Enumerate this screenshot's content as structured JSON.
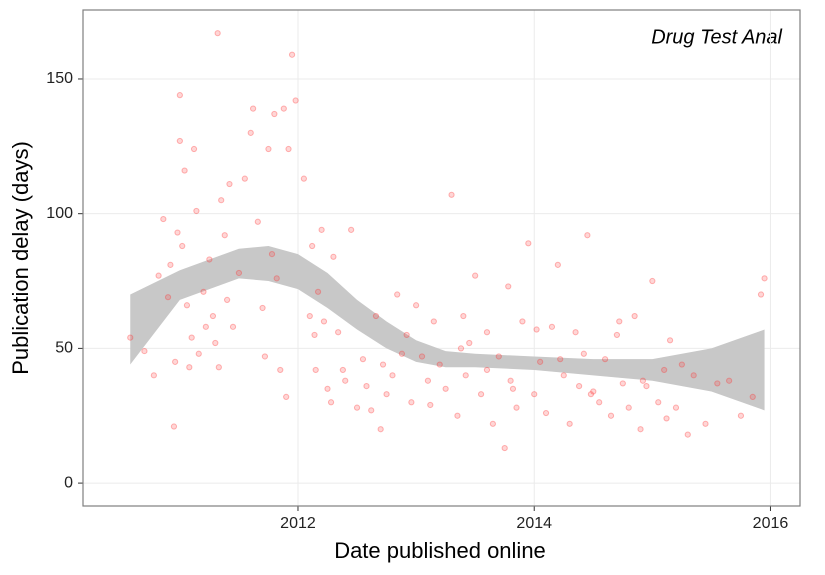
{
  "chart_data": {
    "type": "scatter",
    "annotation": "Drug Test Anal",
    "x_label": "Date published online",
    "y_label": "Publication delay (days)",
    "xlim": [
      2010.18,
      2016.25
    ],
    "ylim": [
      -8.5,
      175.6
    ],
    "xticks": [
      2012,
      2014,
      2016
    ],
    "yticks": [
      0,
      50,
      100,
      150
    ],
    "grid": true,
    "series": [
      {
        "color": "#ff3030",
        "x": [
          2010.58,
          2010.7,
          2010.78,
          2010.82,
          2010.86,
          2010.9,
          2010.92,
          2010.95,
          2010.96,
          2010.98,
          2011.0,
          2011.0,
          2011.02,
          2011.04,
          2011.06,
          2011.08,
          2011.1,
          2011.12,
          2011.14,
          2011.16,
          2011.2,
          2011.22,
          2011.25,
          2011.28,
          2011.3,
          2011.32,
          2011.33,
          2011.35,
          2011.38,
          2011.4,
          2011.42,
          2011.45,
          2011.5,
          2011.55,
          2011.6,
          2011.62,
          2011.66,
          2011.7,
          2011.72,
          2011.75,
          2011.78,
          2011.8,
          2011.82,
          2011.85,
          2011.88,
          2011.9,
          2011.92,
          2011.95,
          2011.98,
          2012.05,
          2012.1,
          2012.12,
          2012.14,
          2012.15,
          2012.17,
          2012.2,
          2012.22,
          2012.25,
          2012.28,
          2012.3,
          2012.34,
          2012.38,
          2012.4,
          2012.45,
          2012.5,
          2012.55,
          2012.58,
          2012.62,
          2012.66,
          2012.7,
          2012.72,
          2012.75,
          2012.8,
          2012.84,
          2012.88,
          2012.92,
          2012.96,
          2013.0,
          2013.05,
          2013.1,
          2013.15,
          2013.2,
          2013.25,
          2013.3,
          2013.35,
          2013.4,
          2013.42,
          2013.45,
          2013.5,
          2013.55,
          2013.6,
          2013.65,
          2013.7,
          2013.75,
          2013.78,
          2013.8,
          2013.85,
          2013.9,
          2013.95,
          2014.0,
          2014.05,
          2014.1,
          2014.15,
          2014.2,
          2014.25,
          2014.3,
          2014.35,
          2014.38,
          2014.42,
          2014.45,
          2014.5,
          2014.55,
          2014.6,
          2014.65,
          2014.7,
          2014.75,
          2014.8,
          2014.85,
          2014.9,
          2014.95,
          2015.0,
          2015.05,
          2015.1,
          2015.15,
          2015.2,
          2015.25,
          2015.3,
          2015.35,
          2015.45,
          2015.55,
          2015.65,
          2015.75,
          2015.85,
          2015.92,
          2015.95,
          2013.12,
          2013.38,
          2013.6,
          2013.82,
          2014.02,
          2014.22,
          2014.48,
          2014.72,
          2014.92,
          2015.12
        ],
        "values": [
          54,
          49,
          40,
          77,
          98,
          69,
          81,
          21,
          45,
          93,
          144,
          127,
          88,
          116,
          66,
          43,
          54,
          124,
          101,
          48,
          71,
          58,
          83,
          62,
          52,
          167,
          43,
          105,
          92,
          68,
          111,
          58,
          78,
          113,
          130,
          139,
          97,
          65,
          47,
          124,
          85,
          137,
          76,
          42,
          139,
          32,
          124,
          159,
          142,
          113,
          62,
          88,
          55,
          42,
          71,
          94,
          60,
          35,
          30,
          84,
          56,
          42,
          38,
          94,
          28,
          46,
          36,
          27,
          62,
          20,
          44,
          33,
          40,
          70,
          48,
          55,
          30,
          66,
          47,
          38,
          60,
          44,
          35,
          107,
          25,
          62,
          40,
          52,
          77,
          33,
          56,
          22,
          47,
          13,
          73,
          38,
          28,
          60,
          89,
          33,
          45,
          26,
          58,
          81,
          40,
          22,
          56,
          36,
          48,
          92,
          34,
          30,
          46,
          25,
          55,
          37,
          28,
          62,
          20,
          36,
          75,
          30,
          42,
          53,
          28,
          44,
          18,
          40,
          22,
          37,
          38,
          25,
          32,
          70,
          76,
          29,
          50,
          42,
          35,
          57,
          46,
          33,
          60,
          38,
          24
        ],
        "x_unused": null
      }
    ],
    "band": {
      "color": "#c8c8c8",
      "x": [
        2010.58,
        2011.0,
        2011.5,
        2011.75,
        2012.0,
        2012.25,
        2012.5,
        2012.75,
        2013.0,
        2013.25,
        2013.5,
        2014.0,
        2014.5,
        2015.0,
        2015.5,
        2015.95
      ],
      "lower": [
        44,
        68,
        76,
        75,
        72,
        65,
        57,
        50,
        45,
        43,
        43,
        42,
        40,
        38,
        34,
        27
      ],
      "upper": [
        70,
        79,
        87,
        88,
        85,
        78,
        68,
        60,
        53,
        49,
        48,
        47,
        46,
        46,
        50,
        57
      ]
    }
  }
}
